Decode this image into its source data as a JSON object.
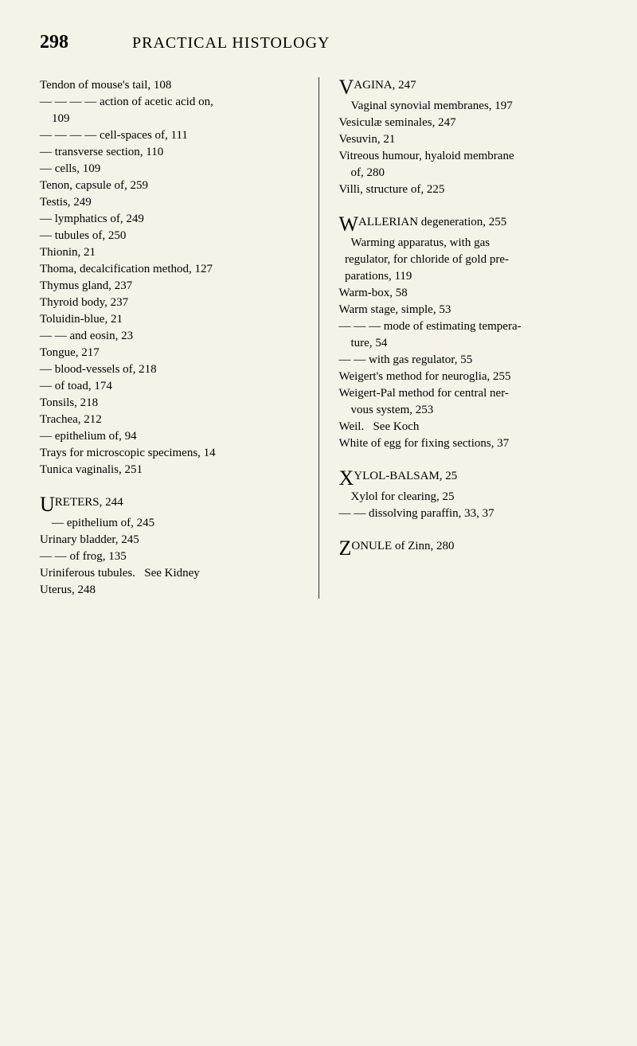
{
  "header": {
    "page_number": "298",
    "title": "PRACTICAL HISTOLOGY"
  },
  "left_column": {
    "entries": [
      "Tendon of mouse's tail, 108",
      "— — — — action of acetic acid on,",
      "    109",
      "— — — — cell-spaces of, 111",
      "— transverse section, 110",
      "— cells, 109",
      "Tenon, capsule of, 259",
      "Testis, 249",
      "— lymphatics of, 249",
      "— tubules of, 250",
      "Thionin, 21",
      "Thoma, decalcification method, 127",
      "Thymus gland, 237",
      "Thyroid body, 237",
      "Toluidin-blue, 21",
      "— — and eosin, 23",
      "Tongue, 217",
      "— blood-vessels of, 218",
      "— of toad, 174",
      "Tonsils, 218",
      "Trachea, 212",
      "— epithelium of, 94",
      "Trays for microscopic specimens, 14",
      "Tunica vaginalis, 251"
    ],
    "u_section": {
      "letter": "U",
      "first_line": "RETERS, 244",
      "rest": [
        "    — epithelium of, 245",
        "Urinary bladder, 245",
        "— — of frog, 135",
        "Uriniferous tubules.   See Kidney",
        "Uterus, 248"
      ]
    }
  },
  "right_column": {
    "v_section": {
      "letter": "V",
      "first_line": "AGINA, 247",
      "rest": [
        "    Vaginal synovial membranes, 197",
        "Vesiculæ seminales, 247",
        "Vesuvin, 21",
        "Vitreous humour, hyaloid membrane",
        "    of, 280",
        "Villi, structure of, 225"
      ]
    },
    "w_section": {
      "letter": "W",
      "first_line": "ALLERIAN degeneration, 255",
      "rest": [
        "    Warming apparatus, with gas",
        "  regulator, for chloride of gold pre-",
        "  parations, 119",
        "Warm-box, 58",
        "Warm stage, simple, 53",
        "— — — mode of estimating tempera-",
        "    ture, 54",
        "— — with gas regulator, 55",
        "Weigert's method for neuroglia, 255",
        "Weigert-Pal method for central ner-",
        "    vous system, 253",
        "Weil.   See Koch",
        "White of egg for fixing sections, 37"
      ]
    },
    "x_section": {
      "letter": "X",
      "first_line": "YLOL-BALSAM, 25",
      "rest": [
        "    Xylol for clearing, 25",
        "— — dissolving paraffin, 33, 37"
      ]
    },
    "z_section": {
      "letter": "Z",
      "first_line": "ONULE of Zinn, 280",
      "rest": []
    }
  },
  "colors": {
    "background": "#f5f3e8",
    "text": "#2a2a2a",
    "divider": "#333333"
  }
}
